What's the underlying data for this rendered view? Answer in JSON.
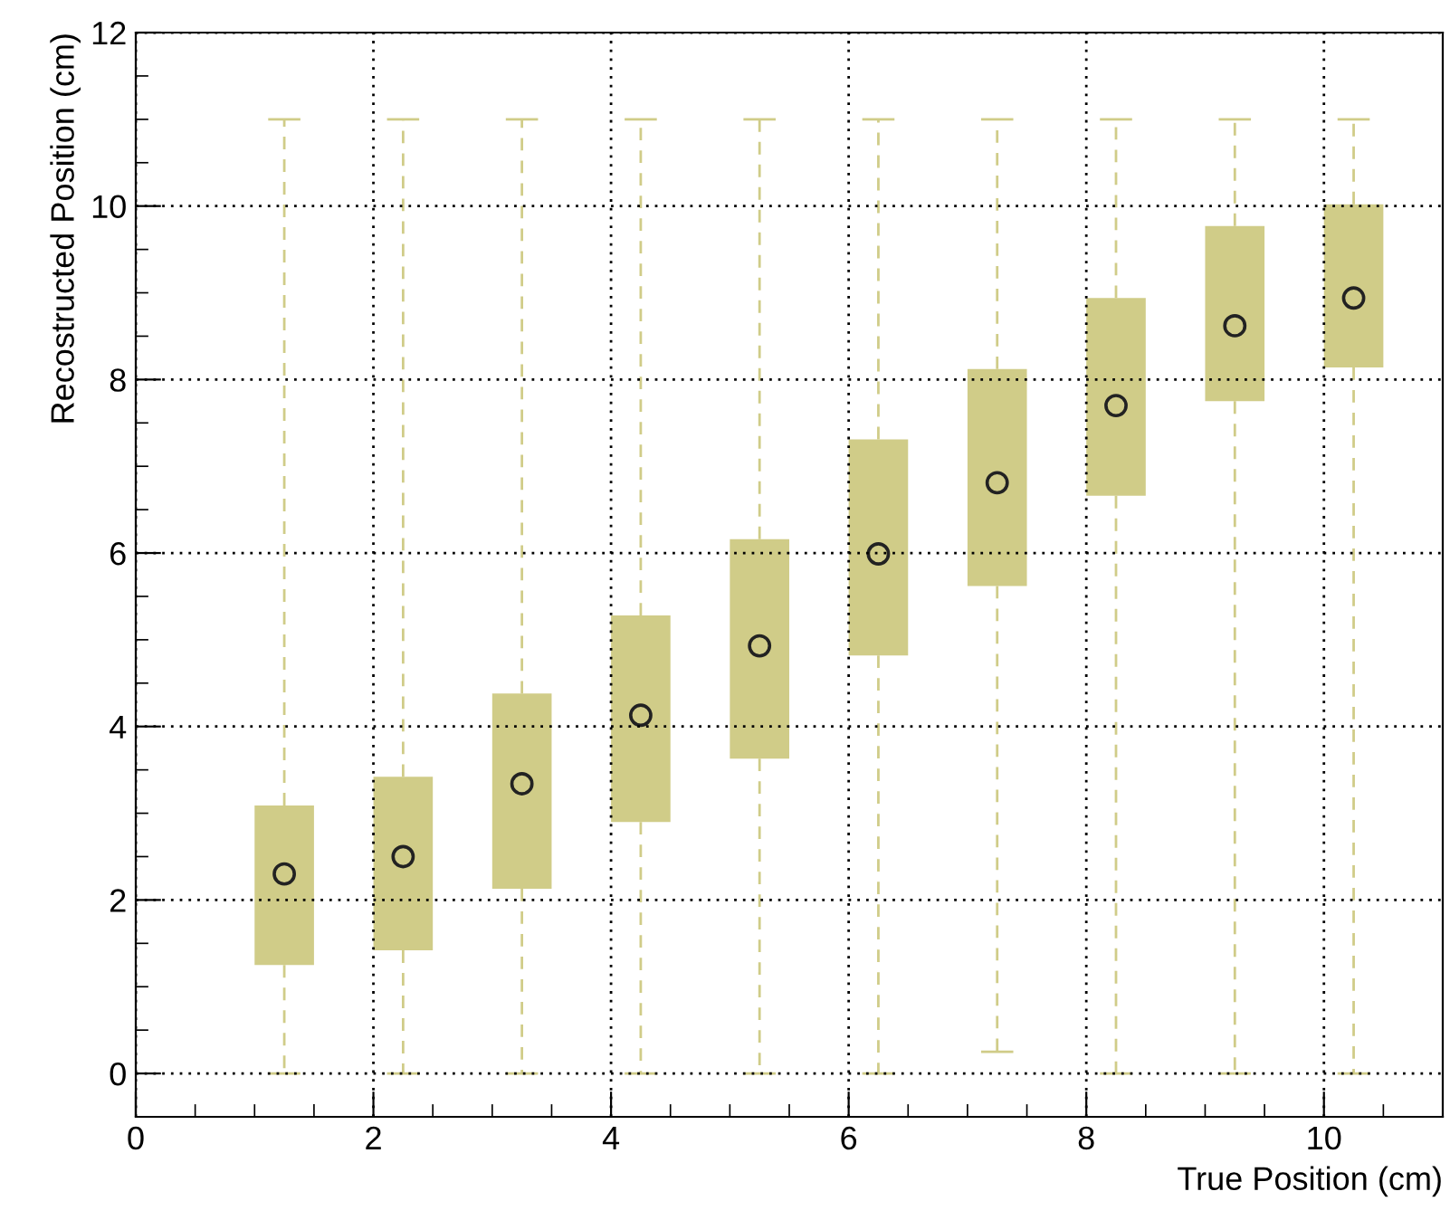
{
  "chart_data": {
    "type": "box",
    "xlabel": "True Position (cm)",
    "ylabel": "Recostructed Position (cm)",
    "x": [
      1.25,
      2.25,
      3.25,
      4.25,
      5.25,
      6.25,
      7.25,
      8.25,
      9.25,
      10.25
    ],
    "color": "#d0cc88",
    "boxes": [
      {
        "low": 0,
        "q1": 1.25,
        "median": 2.3,
        "q3": 3.09,
        "high": 11
      },
      {
        "low": 0,
        "q1": 1.42,
        "median": 2.5,
        "q3": 3.42,
        "high": 11
      },
      {
        "low": 0,
        "q1": 2.13,
        "median": 3.34,
        "q3": 4.38,
        "high": 11
      },
      {
        "low": 0,
        "q1": 2.9,
        "median": 4.13,
        "q3": 5.28,
        "high": 11
      },
      {
        "low": 0,
        "q1": 3.63,
        "median": 4.93,
        "q3": 6.16,
        "high": 11
      },
      {
        "low": 0,
        "q1": 4.82,
        "median": 5.99,
        "q3": 7.31,
        "high": 11
      },
      {
        "low": 0.25,
        "q1": 5.62,
        "median": 6.81,
        "q3": 8.12,
        "high": 11
      },
      {
        "low": 0,
        "q1": 6.66,
        "median": 7.7,
        "q3": 8.94,
        "high": 11
      },
      {
        "low": 0,
        "q1": 7.75,
        "median": 8.62,
        "q3": 9.77,
        "high": 11
      },
      {
        "low": 0,
        "q1": 8.14,
        "median": 8.94,
        "q3": 10.02,
        "high": 11
      }
    ],
    "xlim": [
      0,
      11
    ],
    "xticks": [
      0,
      2,
      4,
      6,
      8,
      10
    ],
    "ylim": [
      -0.5,
      12
    ],
    "yticks": [
      0,
      2,
      4,
      6,
      8,
      10,
      12
    ],
    "grid": true,
    "marker": "circle",
    "legend": false
  }
}
